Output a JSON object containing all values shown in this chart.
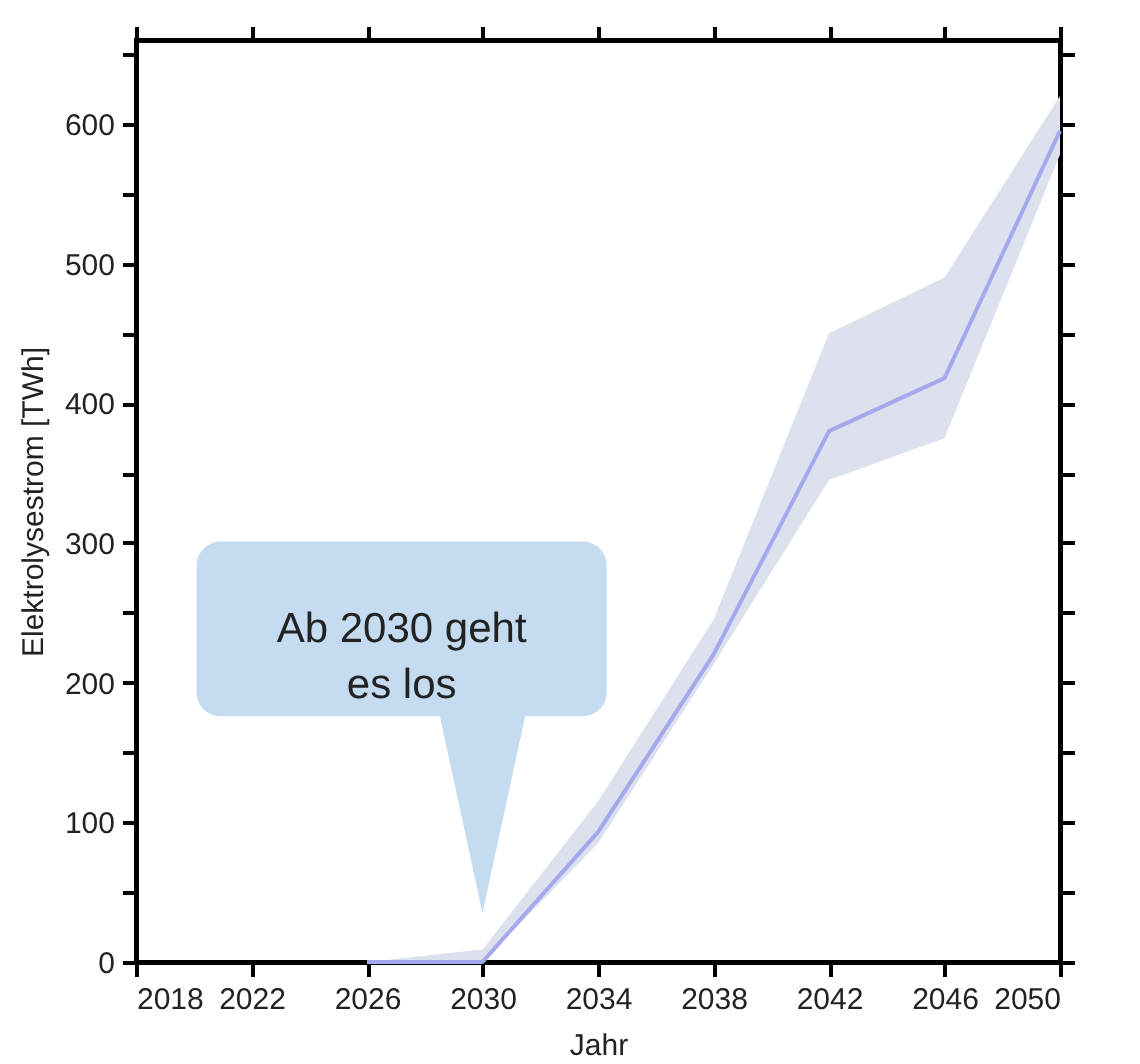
{
  "chart_data": {
    "type": "line",
    "xlabel": "Jahr",
    "ylabel": "Elektrolysestrom [TWh]",
    "x": [
      2026,
      2030,
      2034,
      2038,
      2042,
      2046,
      2050
    ],
    "series": [
      {
        "color": "#a3a9ec",
        "values": [
          0,
          0,
          93,
          220,
          380,
          418,
          595
        ],
        "lower": [
          0,
          0,
          85,
          213,
          345,
          375,
          578
        ],
        "upper": [
          0,
          9,
          115,
          245,
          450,
          490,
          620
        ]
      }
    ],
    "xlim": [
      2018,
      2050
    ],
    "xticks": [
      {
        "value": 2018,
        "label": "2018"
      },
      {
        "value": 2022,
        "label": "2022"
      },
      {
        "value": 2026,
        "label": "2026"
      },
      {
        "value": 2030,
        "label": "2030"
      },
      {
        "value": 2034,
        "label": "2034"
      },
      {
        "value": 2038,
        "label": "2038"
      },
      {
        "value": 2042,
        "label": "2042"
      },
      {
        "value": 2046,
        "label": "2046"
      },
      {
        "value": 2050,
        "label": "2050"
      }
    ],
    "ylim": [
      0,
      660
    ],
    "yticks": [
      0,
      {
        "value": 50,
        "label": null
      },
      100,
      {
        "value": 150,
        "label": null
      },
      200,
      {
        "value": 250,
        "label": null
      },
      300,
      {
        "value": 350,
        "label": null
      },
      400,
      {
        "value": 450,
        "label": null
      },
      500,
      {
        "value": 550,
        "label": null
      },
      600,
      {
        "value": 650,
        "label": null
      }
    ],
    "annotations": [
      "Ab 2030 geht es los"
    ],
    "grid": false,
    "marker": "none",
    "line_style": "solid"
  }
}
